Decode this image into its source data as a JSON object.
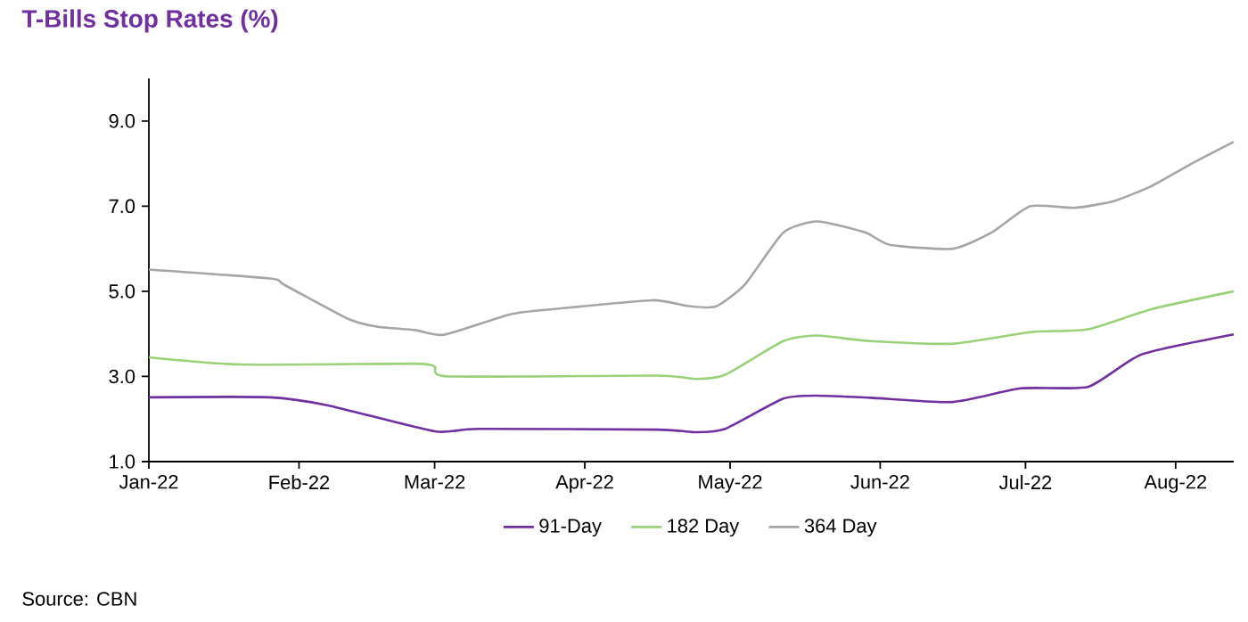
{
  "chart_data": {
    "type": "line",
    "title": "T-Bills Stop Rates (%)",
    "xlim": [
      "2022-01-01",
      "2022-08-13"
    ],
    "xticks": [
      {
        "value": "2022-01-01",
        "label": "Jan-22"
      },
      {
        "value": "2022-02-01",
        "label": "Feb-22"
      },
      {
        "value": "2022-03-01",
        "label": "Mar-22"
      },
      {
        "value": "2022-04-01",
        "label": "Apr-22"
      },
      {
        "value": "2022-05-01",
        "label": "May-22"
      },
      {
        "value": "2022-06-01",
        "label": "Jun-22"
      },
      {
        "value": "2022-07-01",
        "label": "Jul-22"
      },
      {
        "value": "2022-08-01",
        "label": "Aug-22"
      }
    ],
    "ylim": [
      1,
      10
    ],
    "yticks": [
      {
        "value": 1,
        "label": "1.0"
      },
      {
        "value": 3,
        "label": "3.0"
      },
      {
        "value": 5,
        "label": "5.0"
      },
      {
        "value": 7,
        "label": "7.0"
      },
      {
        "value": 9,
        "label": "9.0"
      }
    ],
    "series": [
      {
        "name": "91-Day",
        "color": "#7030a0",
        "x": [
          "2022-01-01",
          "2022-01-26",
          "2022-02-07",
          "2022-03-01",
          "2022-03-10",
          "2022-04-16",
          "2022-04-24",
          "2022-04-30",
          "2022-05-12",
          "2022-05-19",
          "2022-05-30",
          "2022-06-16",
          "2022-06-30",
          "2022-07-14",
          "2022-07-25",
          "2022-08-13"
        ],
        "values": [
          2.51,
          2.51,
          2.32,
          1.71,
          1.77,
          1.75,
          1.69,
          1.77,
          2.48,
          2.55,
          2.5,
          2.4,
          2.72,
          2.76,
          3.52,
          3.99
        ]
      },
      {
        "name": "182 Day",
        "color": "#9bd17a",
        "x": [
          "2022-01-01",
          "2022-01-20",
          "2022-02-25",
          "2022-03-01",
          "2022-03-04",
          "2022-04-16",
          "2022-04-24",
          "2022-04-30",
          "2022-05-12",
          "2022-05-19",
          "2022-05-30",
          "2022-06-16",
          "2022-07-02",
          "2022-07-14",
          "2022-07-27",
          "2022-08-13"
        ],
        "values": [
          3.45,
          3.28,
          3.3,
          3.23,
          3.0,
          3.02,
          2.94,
          3.04,
          3.83,
          3.96,
          3.83,
          3.77,
          4.04,
          4.11,
          4.58,
          5.0
        ]
      },
      {
        "name": "364 Day",
        "color": "#a6a6a6",
        "x": [
          "2022-01-01",
          "2022-01-26",
          "2022-01-29",
          "2022-02-11",
          "2022-02-17",
          "2022-02-25",
          "2022-03-03",
          "2022-03-17",
          "2022-03-29",
          "2022-04-15",
          "2022-04-22",
          "2022-04-28",
          "2022-05-04",
          "2022-05-12",
          "2022-05-19",
          "2022-05-29",
          "2022-06-03",
          "2022-06-16",
          "2022-06-24",
          "2022-07-02",
          "2022-07-11",
          "2022-07-19",
          "2022-07-27",
          "2022-08-04",
          "2022-08-13"
        ],
        "values": [
          5.51,
          5.3,
          5.15,
          4.36,
          4.17,
          4.09,
          3.98,
          4.47,
          4.62,
          4.79,
          4.66,
          4.64,
          5.15,
          6.38,
          6.64,
          6.38,
          6.09,
          6.0,
          6.38,
          7.0,
          6.96,
          7.11,
          7.47,
          7.98,
          8.51
        ]
      }
    ],
    "legend": "bottom",
    "grid": false,
    "marker": "none",
    "line_style": "solid",
    "annotations": [
      "Source: CBN"
    ]
  }
}
